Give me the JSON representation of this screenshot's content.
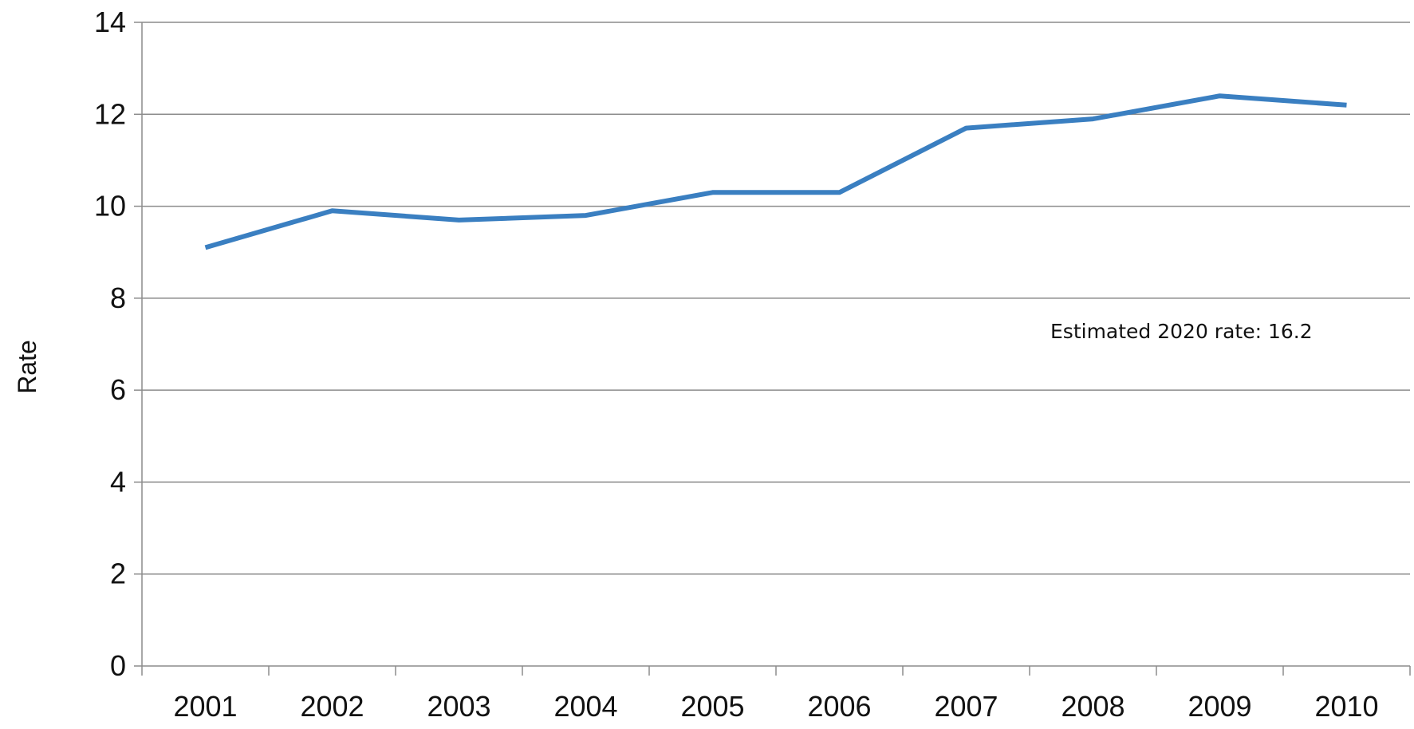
{
  "chart_data": {
    "type": "line",
    "title": "",
    "xlabel": "",
    "ylabel": "Rate",
    "categories": [
      "2001",
      "2002",
      "2003",
      "2004",
      "2005",
      "2006",
      "2007",
      "2008",
      "2009",
      "2010"
    ],
    "series": [
      {
        "values": [
          9.1,
          9.9,
          9.7,
          9.8,
          10.3,
          10.3,
          11.7,
          11.9,
          12.4,
          12.2
        ],
        "color": "#3a7fc1"
      }
    ],
    "yticks": [
      "0",
      "2",
      "4",
      "6",
      "8",
      "10",
      "12",
      "14"
    ],
    "ylim": [
      0,
      14
    ],
    "grid": true,
    "legend": "none",
    "annotation": "Estimated 2020 rate: 16.2"
  }
}
